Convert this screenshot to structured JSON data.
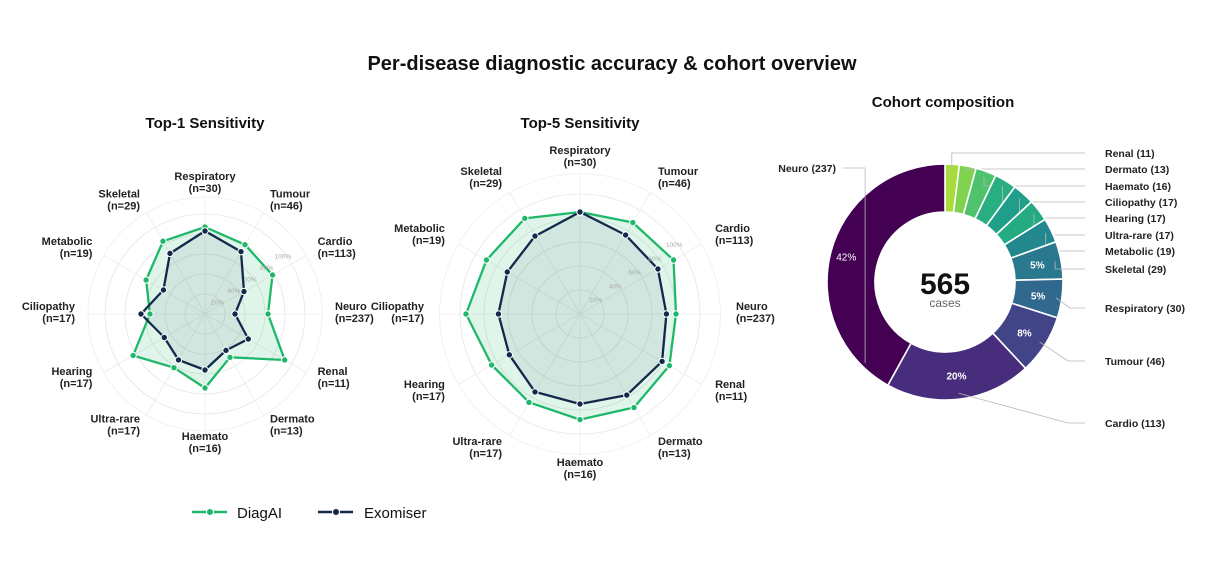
{
  "figure_title": "Per-disease diagnostic accuracy & cohort overview",
  "legend": {
    "items": [
      {
        "name": "DiagAI",
        "color": "#1fb86a"
      },
      {
        "name": "Exomiser",
        "color": "#13294b"
      }
    ]
  },
  "chart_data": [
    {
      "type": "radar",
      "title": "Top-1 Sensitivity",
      "rlim": [
        0,
        100
      ],
      "r_ticks": [
        "20%",
        "40%",
        "60%",
        "80%",
        "100%"
      ],
      "categories": [
        "Respiratory\n(n=30)",
        "Tumour\n(n=46)",
        "Cardio\n(n=113)",
        "Neuro\n(n=237)",
        "Renal\n(n=11)",
        "Dermato\n(n=13)",
        "Haemato\n(n=16)",
        "Ultra-rare\n(n=17)",
        "Hearing\n(n=17)",
        "Ciliopathy\n(n=17)",
        "Metabolic\n(n=19)",
        "Skeletal\n(n=29)"
      ],
      "series": [
        {
          "name": "DiagAI",
          "values": [
            87,
            80,
            78,
            63,
            92,
            50,
            74,
            62,
            83,
            55,
            68,
            84
          ]
        },
        {
          "name": "Exomiser",
          "values": [
            83,
            72,
            45,
            30,
            50,
            42,
            56,
            53,
            47,
            64,
            48,
            70
          ]
        }
      ]
    },
    {
      "type": "radar",
      "title": "Top-5 Sensitivity",
      "rlim": [
        0,
        100
      ],
      "r_ticks": [
        "20%",
        "40%",
        "60%",
        "80%",
        "100%"
      ],
      "categories": [
        "Respiratory\n(n=30)",
        "Tumour\n(n=46)",
        "Cardio\n(n=113)",
        "Neuro\n(n=237)",
        "Renal\n(n=11)",
        "Dermato\n(n=13)",
        "Haemato\n(n=16)",
        "Ultra-rare\n(n=17)",
        "Hearing\n(n=17)",
        "Ciliopathy\n(n=17)",
        "Metabolic\n(n=19)",
        "Skeletal\n(n=29)"
      ],
      "series": [
        {
          "name": "DiagAI",
          "values": [
            85,
            88,
            90,
            80,
            86,
            90,
            88,
            85,
            85,
            95,
            90,
            92
          ]
        },
        {
          "name": "Exomiser",
          "values": [
            85,
            76,
            75,
            72,
            79,
            78,
            75,
            75,
            68,
            68,
            70,
            75
          ]
        }
      ]
    },
    {
      "type": "pie",
      "title": "Cohort composition",
      "center_value": "565",
      "center_label": "cases",
      "slices": [
        {
          "label": "Renal (11)",
          "value": 11,
          "color": "#a8db3c"
        },
        {
          "label": "Dermato (13)",
          "value": 13,
          "color": "#7fd34e"
        },
        {
          "label": "Haemato (16)",
          "value": 16,
          "color": "#4ec36b"
        },
        {
          "label": "Ciliopathy (17)",
          "value": 17,
          "color": "#28ae80"
        },
        {
          "label": "Hearing (17)",
          "value": 17,
          "color": "#1f9e89"
        },
        {
          "label": "Ultra-rare (17)",
          "value": 17,
          "color": "#25ab82"
        },
        {
          "label": "Metabolic (19)",
          "value": 19,
          "color": "#23888e"
        },
        {
          "label": "Skeletal (29)",
          "value": 29,
          "color": "#2a788e",
          "pct_label": "5%"
        },
        {
          "label": "Respiratory (30)",
          "value": 30,
          "color": "#31688e",
          "pct_label": "5%"
        },
        {
          "label": "Tumour (46)",
          "value": 46,
          "color": "#414487",
          "pct_label": "8%"
        },
        {
          "label": "Cardio (113)",
          "value": 113,
          "color": "#472d7b",
          "pct_label": "20%"
        },
        {
          "label": "Neuro (237)",
          "value": 237,
          "color": "#440154",
          "pct_label": "42%"
        }
      ]
    }
  ]
}
